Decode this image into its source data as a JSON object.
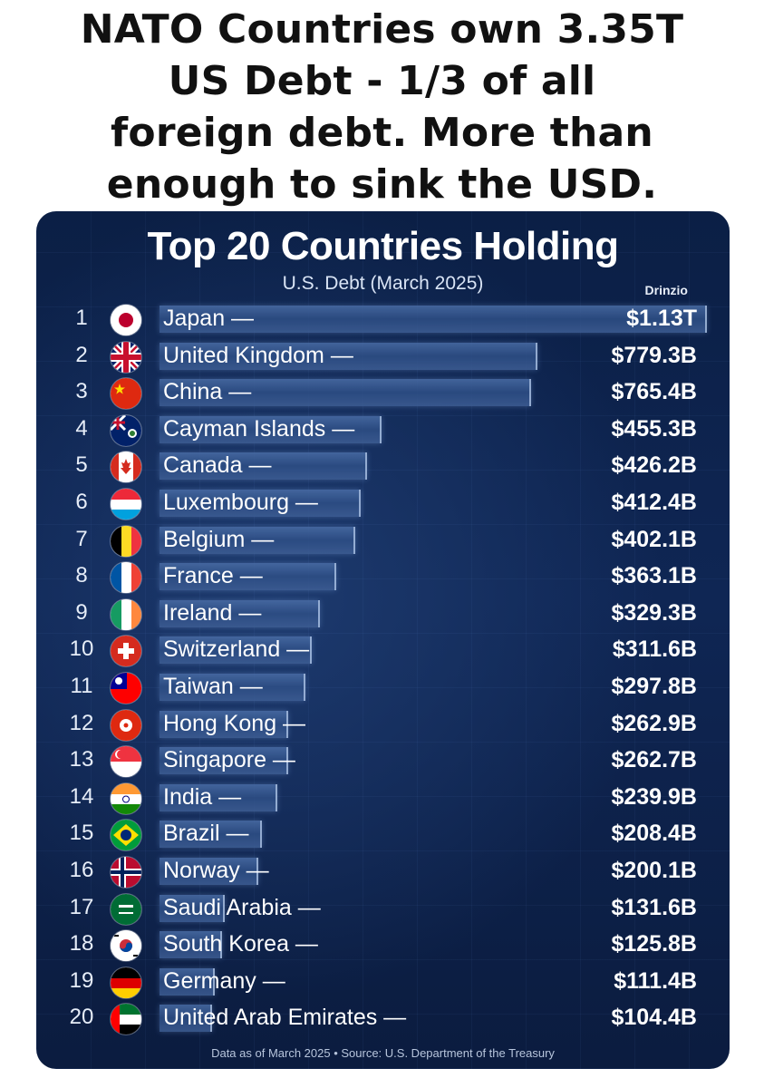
{
  "headline": {
    "line1": "NATO Countries own 3.35T",
    "line2": "US Debt - 1/3 of all",
    "line3": "foreign debt.  More than",
    "line4": "enough to sink the USD."
  },
  "card": {
    "title": "Top 20 Countries Holding",
    "subtitle": "U.S. Debt (March 2025)",
    "brand": "Drinzio",
    "footer": "Data as of March 2025 • Source: U.S. Department of the Treasury"
  },
  "chart_data": {
    "type": "bar",
    "title": "Top 20 Countries Holding",
    "subtitle": "U.S. Debt (March 2025)",
    "unit": "USD billions",
    "categories": [
      "Japan",
      "United Kingdom",
      "China",
      "Cayman Islands",
      "Canada",
      "Luxembourg",
      "Belgium",
      "France",
      "Ireland",
      "Switzerland",
      "Taiwan",
      "Hong Kong",
      "Singapore",
      "India",
      "Brazil",
      "Norway",
      "Saudi Arabia",
      "South Korea",
      "Germany",
      "United Arab Emirates"
    ],
    "values": [
      1130,
      779.3,
      765.4,
      455.3,
      426.2,
      412.4,
      402.1,
      363.1,
      329.3,
      311.6,
      297.8,
      262.9,
      262.7,
      239.9,
      208.4,
      200.1,
      131.6,
      125.8,
      111.4,
      104.4
    ],
    "labels": [
      "$1.13T",
      "$779.3B",
      "$765.4B",
      "$455.3B",
      "$426.2B",
      "$412.4B",
      "$402.1B",
      "$363.1B",
      "$329.3B",
      "$311.6B",
      "$297.8B",
      "$262.9B",
      "$262.7B",
      "$239.9B",
      "$208.4B",
      "$200.1B",
      "$131.6B",
      "$125.8B",
      "$111.4B",
      "$104.4B"
    ],
    "ranks": [
      "1",
      "2",
      "3",
      "4",
      "5",
      "6",
      "7",
      "8",
      "9",
      "10",
      "11",
      "12",
      "13",
      "14",
      "15",
      "16",
      "17",
      "18",
      "19",
      "20"
    ],
    "flags": [
      "japan-flag-icon",
      "uk-flag-icon",
      "china-flag-icon",
      "cayman-flag-icon",
      "canada-flag-icon",
      "luxembourg-flag-icon",
      "belgium-flag-icon",
      "france-flag-icon",
      "ireland-flag-icon",
      "switzerland-flag-icon",
      "taiwan-flag-icon",
      "hongkong-flag-icon",
      "singapore-flag-icon",
      "india-flag-icon",
      "brazil-flag-icon",
      "norway-flag-icon",
      "saudi-flag-icon",
      "southkorea-flag-icon",
      "germany-flag-icon",
      "uae-flag-icon"
    ],
    "name_suffix": " —",
    "orientation": "horizontal",
    "legend": "none"
  }
}
